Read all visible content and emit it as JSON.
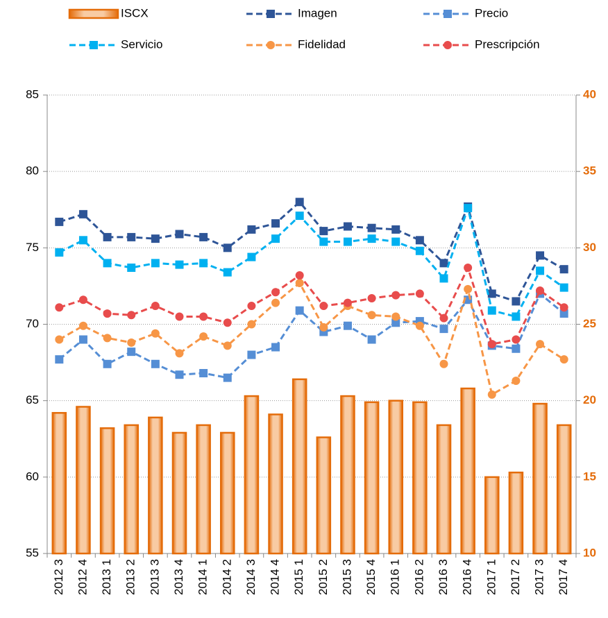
{
  "chart_data": {
    "type": "bar-line",
    "categories": [
      "2012 3",
      "2012 4",
      "2013 1",
      "2013 2",
      "2013 3",
      "2013 4",
      "2014 1",
      "2014 2",
      "2014 3",
      "2014 4",
      "2015 1",
      "2015 2",
      "2015 3",
      "2015 4",
      "2016 1",
      "2016 2",
      "2016 3",
      "2016 4",
      "2017 1",
      "2017 2",
      "2017 3",
      "2017 4"
    ],
    "series": [
      {
        "name": "ISCX",
        "type": "bar",
        "axis": "y2",
        "color": "#e46c0a",
        "values": [
          19.2,
          19.6,
          18.2,
          18.4,
          18.9,
          17.9,
          18.4,
          17.9,
          20.3,
          19.1,
          21.4,
          17.6,
          20.3,
          19.9,
          20.0,
          19.9,
          18.4,
          20.8,
          15.0,
          15.3,
          19.8,
          18.4
        ]
      },
      {
        "name": "Imagen",
        "type": "line",
        "marker": "square",
        "color": "#2e5597",
        "values": [
          76.7,
          77.2,
          75.7,
          75.7,
          75.6,
          75.9,
          75.7,
          75.0,
          76.2,
          76.6,
          78.0,
          76.1,
          76.4,
          76.3,
          76.2,
          75.5,
          74.0,
          77.7,
          72.0,
          71.5,
          74.5,
          73.6
        ]
      },
      {
        "name": "Precio",
        "type": "line",
        "marker": "square",
        "color": "#558ed5",
        "values": [
          67.7,
          69.0,
          67.4,
          68.2,
          67.4,
          66.7,
          66.8,
          66.5,
          68.0,
          68.5,
          70.9,
          69.5,
          69.9,
          69.0,
          70.1,
          70.2,
          69.7,
          71.6,
          68.6,
          68.4,
          72.0,
          70.7
        ]
      },
      {
        "name": "Servicio",
        "type": "line",
        "marker": "square",
        "color": "#00b0f0",
        "values": [
          74.7,
          75.5,
          74.0,
          73.7,
          74.0,
          73.9,
          74.0,
          73.4,
          74.4,
          75.6,
          77.1,
          75.4,
          75.4,
          75.6,
          75.4,
          74.8,
          73.0,
          77.6,
          70.9,
          70.5,
          73.5,
          72.4
        ]
      },
      {
        "name": "Fidelidad",
        "type": "line",
        "marker": "circle",
        "color": "#f79646",
        "values": [
          69.0,
          69.9,
          69.1,
          68.8,
          69.4,
          68.1,
          69.2,
          68.6,
          70.0,
          71.4,
          72.7,
          69.8,
          71.2,
          70.6,
          70.5,
          69.9,
          67.4,
          72.3,
          65.4,
          66.3,
          68.7,
          67.7
        ]
      },
      {
        "name": "Prescripción",
        "type": "line",
        "marker": "circle",
        "color": "#e84c4c",
        "values": [
          71.1,
          71.6,
          70.7,
          70.6,
          71.2,
          70.5,
          70.5,
          70.1,
          71.2,
          72.1,
          73.2,
          71.2,
          71.4,
          71.7,
          71.9,
          72.0,
          70.4,
          73.7,
          68.7,
          69.0,
          72.2,
          71.1
        ]
      }
    ],
    "ylim": [
      55,
      85
    ],
    "yticks": [
      55,
      60,
      65,
      70,
      75,
      80,
      85
    ],
    "y2lim": [
      10,
      40
    ],
    "y2ticks": [
      10,
      15,
      20,
      25,
      30,
      35,
      40
    ],
    "y2_color": "#e46c0a",
    "grid": true,
    "legend": "top"
  }
}
